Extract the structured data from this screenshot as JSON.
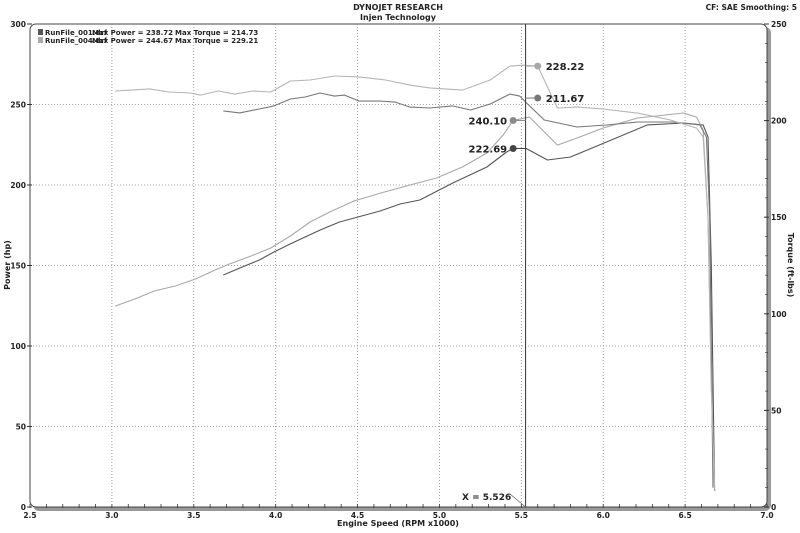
{
  "header": {
    "title": "DYNOJET RESEARCH",
    "subtitle": "Injen Technology",
    "settings": "CF: SAE  Smoothing: 5"
  },
  "legend": [
    {
      "file": "RunFile_001.drf",
      "power_text": "Max Power = 238.72",
      "torque_text": "Max Torque = 214.73",
      "color": "#555555"
    },
    {
      "file": "RunFile_004.drf",
      "power_text": "Max Power = 244.67",
      "torque_text": "Max Torque = 229.21",
      "color": "#a8a8a8"
    }
  ],
  "cursor": {
    "x": 5.526,
    "label": "X = 5.526"
  },
  "chart_data": {
    "type": "line",
    "xlabel": "Engine Speed (RPM x1000)",
    "ylabel": "Power (hp)",
    "y2label": "Torque (ft-lbs)",
    "xlim": [
      2.5,
      7.0
    ],
    "ylim": [
      0,
      300
    ],
    "y2lim": [
      0,
      250
    ],
    "xticks": [
      "2.5",
      "3.0",
      "3.5",
      "4.0",
      "4.5",
      "5.0",
      "5.5",
      "6.0",
      "6.5",
      "7.0"
    ],
    "yticks": [
      "0",
      "50",
      "100",
      "150",
      "200",
      "250",
      "300"
    ],
    "y2ticks": [
      "0",
      "50",
      "100",
      "150",
      "200",
      "250"
    ],
    "grid": true,
    "legend_position": "top-left",
    "series": [
      {
        "name": "RunFile_001.drf",
        "quantity": "power",
        "axis": "left",
        "color": "#555555",
        "x": [
          3.68,
          3.78,
          3.9,
          3.99,
          4.09,
          4.18,
          4.27,
          4.39,
          4.48,
          4.64,
          4.76,
          4.88,
          5.08,
          5.29,
          5.41,
          5.45,
          5.53,
          5.66,
          5.8,
          6.02,
          6.27,
          6.49,
          6.61,
          6.64,
          6.66,
          6.68
        ],
        "y": [
          144.1,
          148.4,
          153.4,
          158.4,
          163.4,
          167.7,
          172.0,
          177.0,
          179.5,
          183.9,
          188.2,
          190.7,
          201.2,
          211.2,
          220.5,
          222.7,
          222.7,
          215.5,
          217.4,
          226.7,
          237.3,
          238.5,
          237.3,
          229.8,
          150,
          10
        ]
      },
      {
        "name": "RunFile_004.drf",
        "quantity": "power",
        "axis": "left",
        "color": "#a8a8a8",
        "x": [
          3.02,
          3.14,
          3.26,
          3.39,
          3.51,
          3.63,
          3.72,
          3.85,
          3.97,
          4.09,
          4.21,
          4.33,
          4.48,
          4.64,
          4.82,
          4.98,
          5.14,
          5.29,
          5.39,
          5.45,
          5.55,
          5.72,
          5.84,
          6.0,
          6.21,
          6.49,
          6.57,
          6.61,
          6.64,
          6.66,
          6.68
        ],
        "y": [
          124.8,
          129.2,
          134.2,
          137.3,
          141.6,
          147.2,
          151.0,
          155.9,
          160.9,
          168.3,
          177.0,
          183.2,
          190.1,
          195.0,
          200.0,
          204.3,
          211.2,
          219.9,
          231.1,
          240.1,
          242.2,
          224.8,
          229.2,
          235.4,
          241.6,
          244.7,
          242.2,
          234.2,
          180,
          80,
          10
        ]
      },
      {
        "name": "RunFile_001.drf",
        "quantity": "torque",
        "axis": "right",
        "color": "#777777",
        "x": [
          3.68,
          3.78,
          3.9,
          3.99,
          4.09,
          4.18,
          4.27,
          4.36,
          4.42,
          4.51,
          4.64,
          4.73,
          4.82,
          4.94,
          5.08,
          5.19,
          5.31,
          5.43,
          5.49,
          5.55,
          5.64,
          5.84,
          6.02,
          6.21,
          6.43,
          6.59,
          6.63,
          6.65,
          6.67
        ],
        "y": [
          205.0,
          204.0,
          206.0,
          207.6,
          211.2,
          212.2,
          214.3,
          212.7,
          213.2,
          210.1,
          210.1,
          209.6,
          207.0,
          206.5,
          207.6,
          205.5,
          208.6,
          213.7,
          212.7,
          207.6,
          200.3,
          196.7,
          197.7,
          199.3,
          199.3,
          197.7,
          191.5,
          150,
          10
        ]
      },
      {
        "name": "RunFile_004.drf",
        "quantity": "torque",
        "axis": "right",
        "color": "#b5b5b5",
        "x": [
          3.02,
          3.23,
          3.35,
          3.48,
          3.54,
          3.65,
          3.75,
          3.86,
          3.97,
          4.09,
          4.21,
          4.36,
          4.51,
          4.67,
          4.82,
          4.94,
          5.14,
          5.31,
          5.43,
          5.51,
          5.6,
          5.66,
          5.72,
          5.84,
          6.0,
          6.21,
          6.41,
          6.57,
          6.61,
          6.64,
          6.66,
          6.68
        ],
        "y": [
          215.3,
          216.4,
          214.8,
          214.3,
          213.2,
          215.3,
          213.7,
          215.3,
          214.8,
          220.5,
          221.0,
          223.1,
          222.6,
          221.0,
          218.4,
          216.9,
          215.8,
          221.0,
          228.2,
          228.7,
          228.2,
          217.4,
          206.5,
          207.0,
          206.0,
          203.9,
          200.3,
          196.1,
          191.5,
          150,
          60,
          10
        ]
      }
    ],
    "annotations": [
      {
        "label": "228.22",
        "x": 5.6,
        "value": 228.22,
        "axis": "right",
        "side": "right",
        "color": "#a8a8a8"
      },
      {
        "label": "211.67",
        "x": 5.6,
        "value": 211.67,
        "axis": "right",
        "side": "right",
        "color": "#777777"
      },
      {
        "label": "240.10",
        "x": 5.45,
        "value": 240.1,
        "axis": "left",
        "side": "left",
        "color": "#8a8a8a"
      },
      {
        "label": "222.69",
        "x": 5.45,
        "value": 222.69,
        "axis": "left",
        "side": "left",
        "color": "#444444"
      }
    ]
  }
}
